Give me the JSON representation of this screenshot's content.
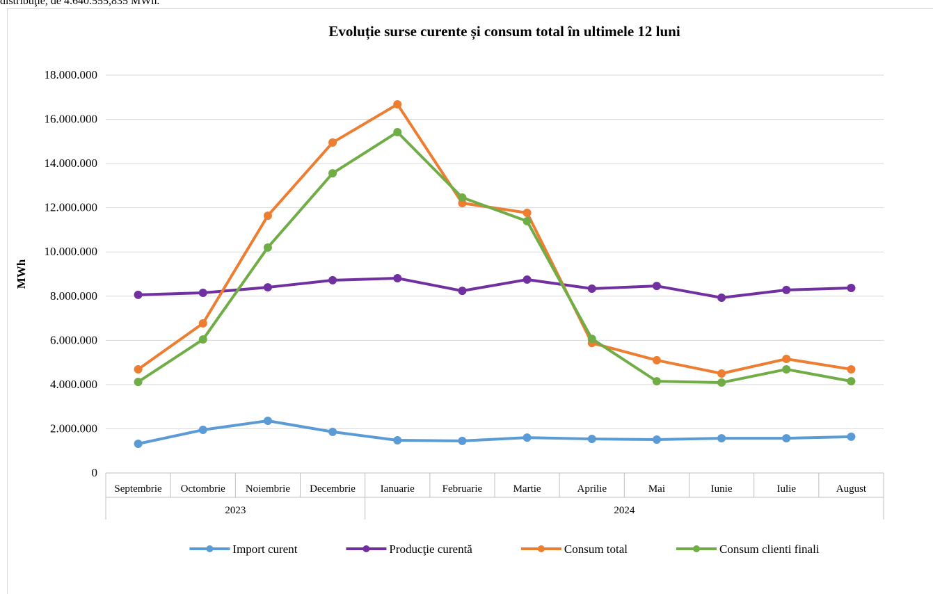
{
  "page_text": "distribuţie, de 4.640.555,835 MWh.",
  "chart_data": {
    "type": "line",
    "title": "Evoluție surse curente și consum total în ultimele 12 luni",
    "y_label": "MWh",
    "categories": [
      "Septembrie",
      "Octombrie",
      "Noiembrie",
      "Decembrie",
      "Ianuarie",
      "Februarie",
      "Martie",
      "Aprilie",
      "Mai",
      "Iunie",
      "Iulie",
      "August"
    ],
    "category_groups": [
      "2023",
      "2023",
      "2023",
      "2023",
      "2024",
      "2024",
      "2024",
      "2024",
      "2024",
      "2024",
      "2024",
      "2024"
    ],
    "series": [
      {
        "name": "Import curent",
        "color": "#5b9bd5",
        "values": [
          1320000,
          1950000,
          2360000,
          1860000,
          1480000,
          1450000,
          1600000,
          1540000,
          1510000,
          1570000,
          1570000,
          1640000
        ]
      },
      {
        "name": "Producţie curentă",
        "color": "#7030a0",
        "values": [
          8060000,
          8150000,
          8400000,
          8720000,
          8810000,
          8240000,
          8750000,
          8340000,
          8460000,
          7930000,
          8280000,
          8370000
        ]
      },
      {
        "name": "Consum total",
        "color": "#ed7d31",
        "values": [
          4690000,
          6770000,
          11640000,
          14950000,
          16680000,
          12210000,
          11770000,
          5880000,
          5100000,
          4500000,
          5160000,
          4690000
        ]
      },
      {
        "name": "Consum clienti finali",
        "color": "#70ad47",
        "values": [
          4120000,
          6040000,
          10200000,
          13560000,
          15420000,
          12460000,
          11390000,
          6070000,
          4150000,
          4090000,
          4690000,
          4150000
        ]
      }
    ],
    "ylim": [
      0,
      18000000
    ],
    "yticks": [
      0,
      {
        "value": 2000000,
        "label": "2.000.000"
      },
      {
        "value": 4000000,
        "label": "4.000.000"
      },
      {
        "value": 6000000,
        "label": "6.000.000"
      },
      {
        "value": 8000000,
        "label": "8.000.000"
      },
      {
        "value": 10000000,
        "label": "10.000.000"
      },
      {
        "value": 12000000,
        "label": "12.000.000"
      },
      {
        "value": 14000000,
        "label": "14.000.000"
      },
      {
        "value": 16000000,
        "label": "16.000.000"
      },
      {
        "value": 18000000,
        "label": "18.000.000"
      }
    ],
    "grid": true,
    "legend": "bottom"
  }
}
